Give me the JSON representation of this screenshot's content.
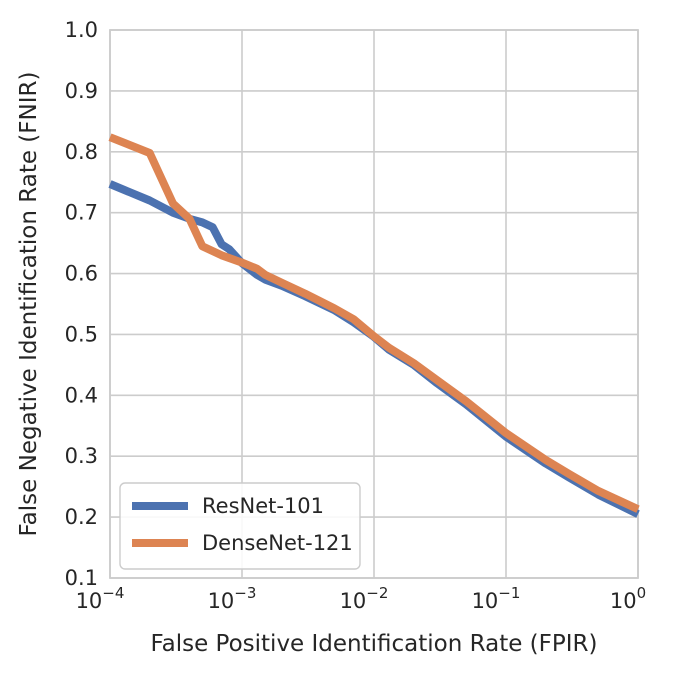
{
  "chart_data": {
    "type": "line",
    "title": "",
    "xlabel": "False Positive Identification Rate (FPIR)",
    "ylabel": "False Negative Identification Rate (FNIR)",
    "xscale": "log",
    "xlim": [
      0.0001,
      1
    ],
    "ylim": [
      0.1,
      1.0
    ],
    "grid": true,
    "legend_position": "lower-left",
    "x_ticks": [
      {
        "value": 0.0001,
        "base": "10",
        "exp": "−4"
      },
      {
        "value": 0.001,
        "base": "10",
        "exp": "−3"
      },
      {
        "value": 0.01,
        "base": "10",
        "exp": "−2"
      },
      {
        "value": 0.1,
        "base": "10",
        "exp": "−1"
      },
      {
        "value": 1,
        "base": "10",
        "exp": "0"
      }
    ],
    "y_ticks": [
      {
        "value": 0.1,
        "label": "0.1"
      },
      {
        "value": 0.2,
        "label": "0.2"
      },
      {
        "value": 0.3,
        "label": "0.3"
      },
      {
        "value": 0.4,
        "label": "0.4"
      },
      {
        "value": 0.5,
        "label": "0.5"
      },
      {
        "value": 0.6,
        "label": "0.6"
      },
      {
        "value": 0.7,
        "label": "0.7"
      },
      {
        "value": 0.8,
        "label": "0.8"
      },
      {
        "value": 0.9,
        "label": "0.9"
      },
      {
        "value": 1.0,
        "label": "1.0"
      }
    ],
    "series": [
      {
        "name": "ResNet-101",
        "color": "#4c72b0",
        "points": [
          [
            0.0001,
            0.747
          ],
          [
            0.0002,
            0.72
          ],
          [
            0.0003,
            0.7
          ],
          [
            0.0004,
            0.69
          ],
          [
            0.0005,
            0.684
          ],
          [
            0.0006,
            0.676
          ],
          [
            0.0007,
            0.648
          ],
          [
            0.0008,
            0.64
          ],
          [
            0.001,
            0.617
          ],
          [
            0.0013,
            0.598
          ],
          [
            0.0015,
            0.59
          ],
          [
            0.002,
            0.58
          ],
          [
            0.003,
            0.563
          ],
          [
            0.005,
            0.54
          ],
          [
            0.007,
            0.52
          ],
          [
            0.01,
            0.496
          ],
          [
            0.013,
            0.475
          ],
          [
            0.02,
            0.45
          ],
          [
            0.03,
            0.42
          ],
          [
            0.05,
            0.385
          ],
          [
            0.1,
            0.332
          ],
          [
            0.2,
            0.288
          ],
          [
            0.3,
            0.265
          ],
          [
            0.5,
            0.237
          ],
          [
            1,
            0.205
          ]
        ]
      },
      {
        "name": "DenseNet-121",
        "color": "#dd8452",
        "points": [
          [
            0.0001,
            0.824
          ],
          [
            0.0002,
            0.798
          ],
          [
            0.0003,
            0.715
          ],
          [
            0.0004,
            0.69
          ],
          [
            0.0005,
            0.645
          ],
          [
            0.0007,
            0.63
          ],
          [
            0.001,
            0.618
          ],
          [
            0.0013,
            0.608
          ],
          [
            0.0015,
            0.598
          ],
          [
            0.002,
            0.585
          ],
          [
            0.003,
            0.567
          ],
          [
            0.005,
            0.543
          ],
          [
            0.007,
            0.525
          ],
          [
            0.01,
            0.497
          ],
          [
            0.013,
            0.478
          ],
          [
            0.02,
            0.453
          ],
          [
            0.03,
            0.425
          ],
          [
            0.05,
            0.39
          ],
          [
            0.1,
            0.338
          ],
          [
            0.2,
            0.294
          ],
          [
            0.3,
            0.271
          ],
          [
            0.5,
            0.243
          ],
          [
            1,
            0.213
          ]
        ]
      }
    ]
  }
}
